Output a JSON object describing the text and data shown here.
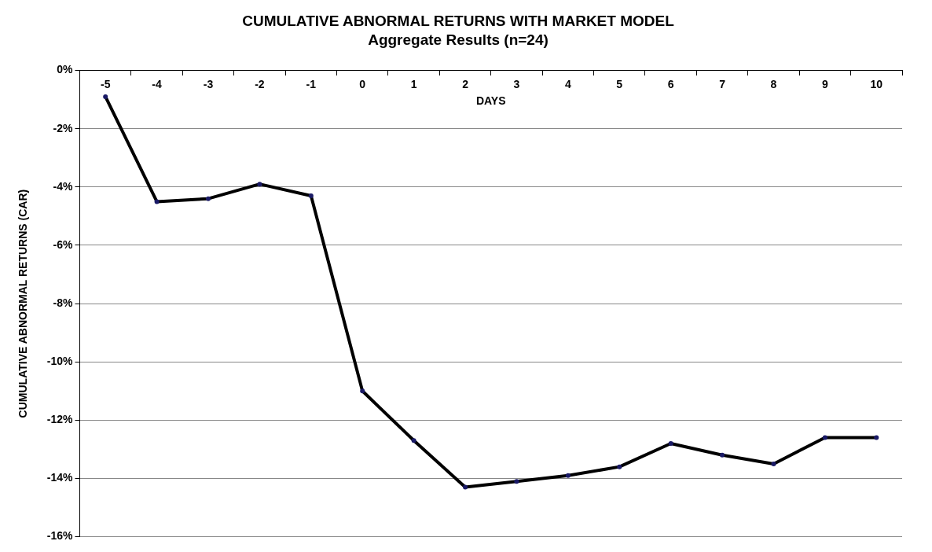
{
  "chart_data": {
    "type": "line",
    "title": "CUMULATIVE ABNORMAL RETURNS WITH MARKET MODEL",
    "subtitle": "Aggregate Results (n=24)",
    "xlabel": "DAYS",
    "ylabel": "CUMULATIVE ABNORMAL RETURNS (CAR)",
    "categories": [
      "-5",
      "-4",
      "-3",
      "-2",
      "-1",
      "0",
      "1",
      "2",
      "3",
      "4",
      "5",
      "6",
      "7",
      "8",
      "9",
      "10"
    ],
    "series": [
      {
        "color": "#000000",
        "values": [
          -0.9,
          -4.5,
          -4.4,
          -3.9,
          -4.3,
          -11.0,
          -12.7,
          -14.3,
          -14.1,
          -13.9,
          -13.6,
          -12.8,
          -13.2,
          -13.5,
          -12.6,
          -12.6
        ]
      }
    ],
    "ylim": [
      -16,
      0
    ],
    "yticks": [
      {
        "value": 0,
        "label": "0%"
      },
      {
        "value": -2,
        "label": "-2%"
      },
      {
        "value": -4,
        "label": "-4%"
      },
      {
        "value": -6,
        "label": "-6%"
      },
      {
        "value": -8,
        "label": "-8%"
      },
      {
        "value": -10,
        "label": "-10%"
      },
      {
        "value": -12,
        "label": "-12%"
      },
      {
        "value": -14,
        "label": "-14%"
      },
      {
        "value": -16,
        "label": "-16%"
      }
    ],
    "grid": "y",
    "legend": false,
    "marker": "circle",
    "line_style": "solid"
  }
}
